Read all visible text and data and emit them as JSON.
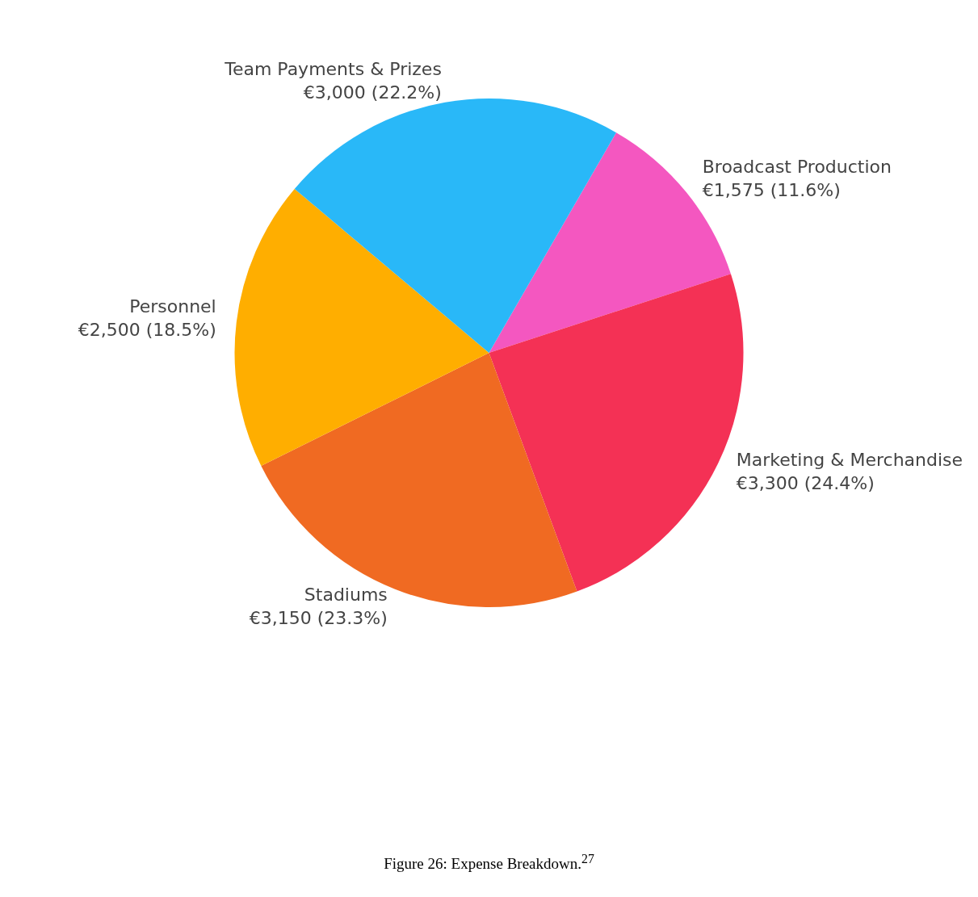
{
  "chart_data": {
    "type": "pie",
    "categories": [
      "Broadcast Production",
      "Marketing & Merchandise",
      "Stadiums",
      "Personnel",
      "Team Payments & Prizes"
    ],
    "values": [
      1575,
      3300,
      3150,
      2500,
      3000
    ],
    "colors": [
      "#f457c0",
      "#f43155",
      "#f06a22",
      "#ffae00",
      "#29b8f8"
    ],
    "value_labels": [
      "€1,575 (11.6%)",
      "€3,300 (24.4%)",
      "€3,150 (23.3%)",
      "€2,500 (18.5%)",
      "€3,000 (22.2%)"
    ],
    "legend": false,
    "annotations": [
      "Figure 26: Expense Breakdown.$^{27}$"
    ]
  }
}
